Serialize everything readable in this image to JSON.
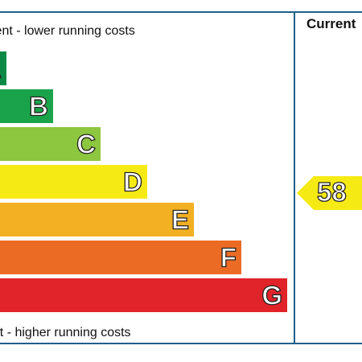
{
  "chart_data": {
    "type": "bar",
    "bands": [
      {
        "letter": "A",
        "color": "#0c8a45"
      },
      {
        "letter": "B",
        "color": "#1aa34a"
      },
      {
        "letter": "C",
        "color": "#8dc63f"
      },
      {
        "letter": "D",
        "color": "#f6ea15"
      },
      {
        "letter": "E",
        "color": "#f3b022"
      },
      {
        "letter": "F",
        "color": "#ec6b24"
      },
      {
        "letter": "G",
        "color": "#e1232a"
      }
    ],
    "top_caption": "cient - lower running costs",
    "bottom_caption": "ent - higher running costs",
    "columns": [
      "Current"
    ],
    "current": {
      "value": "58",
      "band": "D",
      "color": "#f6ea15"
    }
  }
}
